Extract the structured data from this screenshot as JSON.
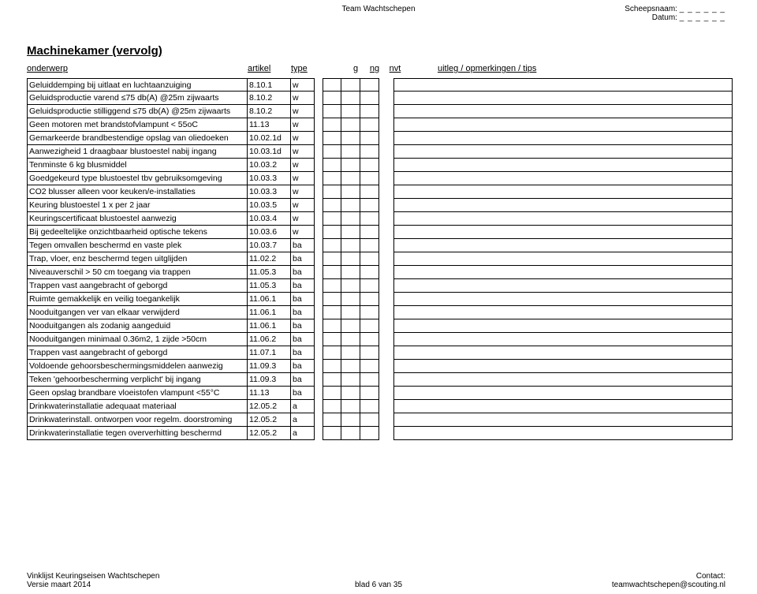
{
  "header": {
    "center": "Team Wachtschepen",
    "right_line1_label": "Scheepsnaam:",
    "right_line2_label": "Datum:",
    "blank": "_ _ _ _ _ _"
  },
  "section_title": "Machinekamer (vervolg)",
  "columns": {
    "subject": "onderwerp",
    "article": "artikel",
    "type": "type",
    "g": "g",
    "ng": "ng",
    "nvt": "nvt",
    "tips": "uitleg / opmerkingen / tips"
  },
  "rows": [
    {
      "subject": "Geluiddemping bij uitlaat en luchtaanzuiging",
      "article": "8.10.1",
      "type": "w"
    },
    {
      "subject": "Geluidsproductie varend ≤75 db(A) @25m zijwaarts",
      "article": "8.10.2",
      "type": "w"
    },
    {
      "subject": "Geluidsproductie stilliggend ≤75 db(A) @25m zijwaarts",
      "article": "8.10.2",
      "type": "w"
    },
    {
      "subject": "Geen motoren met brandstofvlampunt < 55oC",
      "article": "11.13",
      "type": "w"
    },
    {
      "subject": "Gemarkeerde brandbestendige opslag van oliedoeken",
      "article": "10.02.1d",
      "type": "w"
    },
    {
      "subject": "Aanwezigheid 1 draagbaar blustoestel nabij ingang",
      "article": "10.03.1d",
      "type": "w"
    },
    {
      "subject": "Tenminste 6 kg blusmiddel",
      "article": "10.03.2",
      "type": "w"
    },
    {
      "subject": "Goedgekeurd type blustoestel tbv gebruiksomgeving",
      "article": "10.03.3",
      "type": "w"
    },
    {
      "subject": "CO2 blusser alleen voor keuken/e-installaties",
      "article": "10.03.3",
      "type": "w"
    },
    {
      "subject": "Keuring blustoestel 1 x per 2 jaar",
      "article": "10.03.5",
      "type": "w"
    },
    {
      "subject": "Keuringscertificaat blustoestel aanwezig",
      "article": "10.03.4",
      "type": "w"
    },
    {
      "subject": "Bij gedeeltelijke onzichtbaarheid optische tekens",
      "article": "10.03.6",
      "type": "w"
    },
    {
      "subject": "Tegen omvallen beschermd en vaste plek",
      "article": "10.03.7",
      "type": "ba"
    },
    {
      "subject": "Trap, vloer, enz beschermd tegen uitglijden",
      "article": "11.02.2",
      "type": "ba"
    },
    {
      "subject": "Niveauverschil > 50 cm toegang via trappen",
      "article": "11.05.3",
      "type": "ba"
    },
    {
      "subject": "Trappen vast aangebracht of geborgd",
      "article": "11.05.3",
      "type": "ba"
    },
    {
      "subject": "Ruimte gemakkelijk en veilig toegankelijk",
      "article": "11.06.1",
      "type": "ba"
    },
    {
      "subject": "Nooduitgangen ver van elkaar verwijderd",
      "article": "11.06.1",
      "type": "ba"
    },
    {
      "subject": "Nooduitgangen als zodanig aangeduid",
      "article": "11.06.1",
      "type": "ba"
    },
    {
      "subject": "Nooduitgangen minimaal 0.36m2, 1 zijde >50cm",
      "article": "11.06.2",
      "type": "ba"
    },
    {
      "subject": "Trappen vast aangebracht of geborgd",
      "article": "11.07.1",
      "type": "ba"
    },
    {
      "subject": "Voldoende gehoorsbeschermingsmiddelen aanwezig",
      "article": "11.09.3",
      "type": "ba"
    },
    {
      "subject": "Teken 'gehoorbescherming verplicht' bij ingang",
      "article": "11.09.3",
      "type": "ba"
    },
    {
      "subject": "Geen opslag brandbare vloeistofen vlampunt <55°C",
      "article": "11.13",
      "type": "ba"
    },
    {
      "subject": "Drinkwaterinstallatie adequaat materiaal",
      "article": "12.05.2",
      "type": "a"
    },
    {
      "subject": "Drinkwaterinstall. ontworpen voor regelm. doorstroming",
      "article": "12.05.2",
      "type": "a"
    },
    {
      "subject": "Drinkwaterinstallatie tegen oververhitting beschermd",
      "article": "12.05.2",
      "type": "a"
    }
  ],
  "footer": {
    "left_line1": "Vinklijst Keuringseisen Wachtschepen",
    "left_line2": "Versie maart 2014",
    "center": "blad 6 van 35",
    "right_line1": "Contact:",
    "right_line2": "teamwachtschepen@scouting.nl"
  }
}
